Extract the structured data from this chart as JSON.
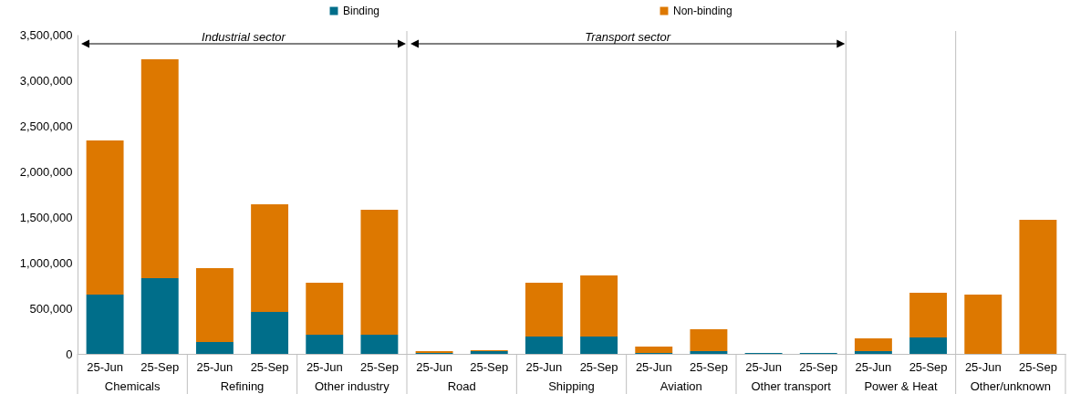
{
  "chart_data": {
    "type": "bar",
    "stacked": true,
    "categories": [
      "25-Jun",
      "25-Sep",
      "25-Jun",
      "25-Sep",
      "25-Jun",
      "25-Sep",
      "25-Jun",
      "25-Sep",
      "25-Jun",
      "25-Sep",
      "25-Jun",
      "25-Sep",
      "25-Jun",
      "25-Sep",
      "25-Jun",
      "25-Sep",
      "25-Jun",
      "25-Sep"
    ],
    "series": [
      {
        "name": "Binding",
        "color": "#006e8a",
        "values": [
          650000,
          830000,
          130000,
          460000,
          210000,
          210000,
          10000,
          30000,
          190000,
          190000,
          10000,
          30000,
          10000,
          10000,
          30000,
          180000,
          0,
          0
        ]
      },
      {
        "name": "Non-binding",
        "color": "#dd7800",
        "values": [
          1690000,
          2400000,
          810000,
          1180000,
          570000,
          1370000,
          20000,
          10000,
          590000,
          670000,
          70000,
          240000,
          0,
          0,
          140000,
          490000,
          650000,
          1470000
        ]
      }
    ],
    "ylim": [
      0,
      3500000
    ],
    "yticks": [
      0,
      {
        "value": 500000,
        "label": "500,000"
      },
      {
        "value": 1000000,
        "label": "1,000,000"
      },
      {
        "value": 1500000,
        "label": "1,500,000"
      },
      {
        "value": 2000000,
        "label": "2,000,000"
      },
      {
        "value": 2500000,
        "label": "2,500,000"
      },
      {
        "value": 3000000,
        "label": "3,000,000"
      },
      {
        "value": 3500000,
        "label": "3,500,000"
      }
    ],
    "legend": "top",
    "annotations": [
      "Industrial sector",
      "Transport sector",
      "Chemicals",
      "Refining",
      "Other industry",
      "Road",
      "Shipping",
      "Aviation",
      "Other transport",
      "Power & Heat",
      "Other/unknown"
    ]
  }
}
